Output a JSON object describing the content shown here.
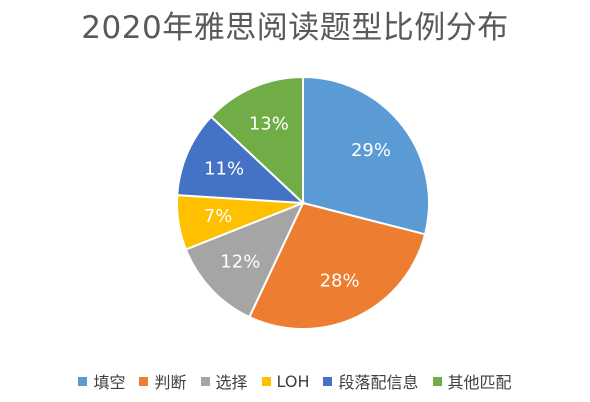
{
  "chart_data": {
    "type": "pie",
    "title": "2020年雅思阅读题型比例分布",
    "slices": [
      {
        "label": "填空",
        "value": 29,
        "display": "29%",
        "color": "#5b9bd5"
      },
      {
        "label": "判断",
        "value": 28,
        "display": "28%",
        "color": "#ed7d31"
      },
      {
        "label": "选择",
        "value": 12,
        "display": "12%",
        "color": "#a5a5a5"
      },
      {
        "label": "LOH",
        "value": 7,
        "display": "7%",
        "color": "#ffc000"
      },
      {
        "label": "段落配信息",
        "value": 11,
        "display": "11%",
        "color": "#4472c4"
      },
      {
        "label": "其他匹配",
        "value": 13,
        "display": "13%",
        "color": "#70ad47"
      }
    ],
    "legend": "bottom",
    "start": "12 o'clock",
    "direction": "clockwise"
  }
}
